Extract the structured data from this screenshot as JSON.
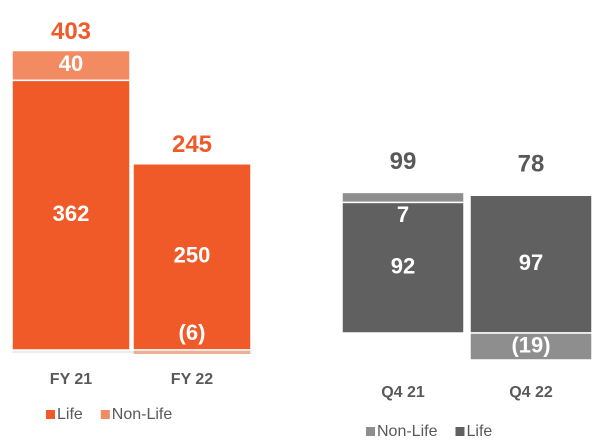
{
  "chart_data": [
    {
      "type": "stacked-bar",
      "categories": [
        "FY 21",
        "FY 22"
      ],
      "series": [
        {
          "name": "Life",
          "color": "#f05a28",
          "values": [
            362,
            250
          ]
        },
        {
          "name": "Non-Life",
          "color": "#f28a62",
          "values": [
            40,
            -6
          ],
          "value_labels": [
            "40",
            "(6)"
          ]
        }
      ],
      "totals": [
        403,
        245
      ],
      "totals_color": "#f05a28"
    },
    {
      "type": "stacked-bar",
      "categories": [
        "Q4 21",
        "Q4 22"
      ],
      "series": [
        {
          "name": "Life",
          "color": "#606060",
          "values": [
            92,
            97
          ]
        },
        {
          "name": "Non-Life",
          "color": "#8e8e8e",
          "values": [
            7,
            -19
          ],
          "value_labels": [
            "7",
            "(19)"
          ]
        }
      ],
      "totals": [
        99,
        78
      ],
      "totals_color": "#595959"
    }
  ]
}
